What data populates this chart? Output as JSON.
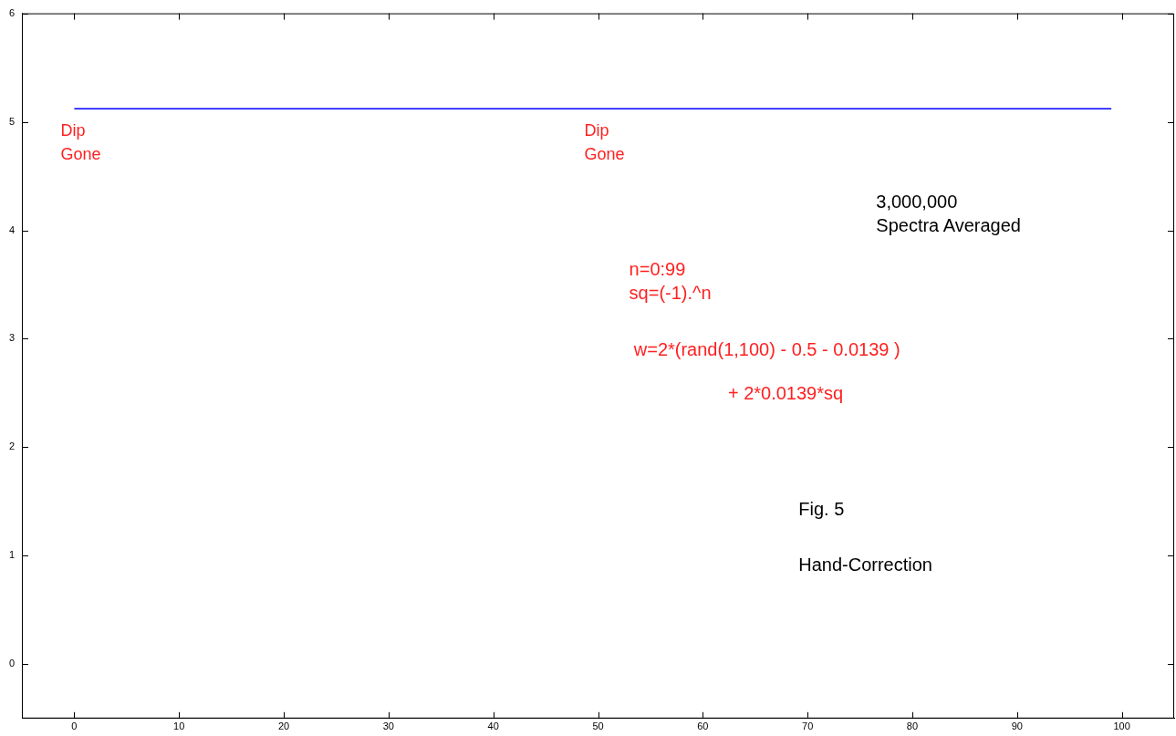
{
  "chart_data": {
    "type": "line",
    "x": [
      0,
      99
    ],
    "series": [
      {
        "color": "#0000ff",
        "values": [
          5.12,
          5.12
        ]
      }
    ],
    "xlim": [
      -5,
      105
    ],
    "xticks": [
      0,
      10,
      20,
      30,
      40,
      50,
      60,
      70,
      80,
      90,
      100
    ],
    "ylim": [
      -0.5,
      6
    ],
    "yticks": [
      0,
      1,
      2,
      3,
      4,
      5,
      6
    ],
    "grid": false,
    "legend": false,
    "marker": "none",
    "line_style": "solid",
    "annotations": [
      {
        "text": "Dip\nGone",
        "x": 0,
        "y": 5.12
      },
      {
        "text": "Dip\nGone",
        "x": 50,
        "y": 5.12
      },
      "3,000,000\nSpectra Averaged",
      "n=0:99\nsq=(-1).^n",
      "w=2*(rand(1,100) - 0.5 - 0.0139 )",
      "+ 2*0.0139*sq",
      "Fig. 5",
      "Hand-Correction"
    ]
  }
}
